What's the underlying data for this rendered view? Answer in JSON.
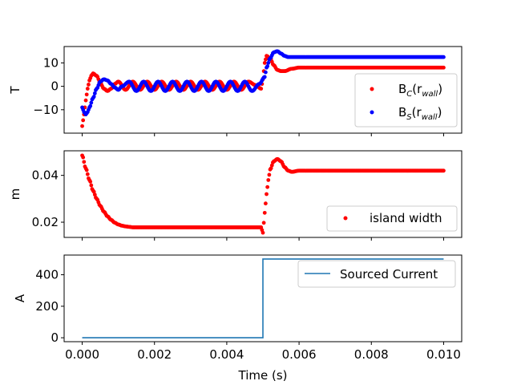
{
  "chart_data": [
    {
      "type": "scatter",
      "ylabel": "T",
      "xlim": [
        -0.0005,
        0.0105
      ],
      "ylim": [
        -20,
        17
      ],
      "yticks": [
        -10,
        0,
        10
      ],
      "ytick_labels": [
        "−10",
        "0",
        "10"
      ],
      "legend_position": "lower-right",
      "series": [
        {
          "name": "B",
          "name_sub": "C",
          "name_suffix": "(r",
          "name_arg": "wall",
          "color": "#ff0000",
          "x": [
            0.0,
            5e-05,
            0.0001,
            0.00015,
            0.0002,
            0.00025,
            0.0003,
            0.0004,
            0.0005,
            0.0006,
            0.0007,
            0.0008,
            0.0009,
            0.001,
            0.0012,
            0.0014,
            0.0016,
            0.0018,
            0.002,
            0.0022,
            0.0024,
            0.0026,
            0.0028,
            0.003,
            0.0032,
            0.0034,
            0.0036,
            0.0038,
            0.004,
            0.0042,
            0.0044,
            0.0046,
            0.0048,
            0.00495,
            0.005,
            0.00505,
            0.0051,
            0.0052,
            0.0053,
            0.0054,
            0.0055,
            0.0056,
            0.0058,
            0.006,
            0.0065,
            0.007,
            0.0075,
            0.008,
            0.0085,
            0.009,
            0.0095,
            0.01
          ],
          "y": [
            -17,
            -12,
            -6,
            -1,
            2.5,
            4.5,
            5.5,
            4.5,
            1.5,
            -1,
            -2,
            -1,
            1,
            2,
            -1.5,
            2,
            -1.5,
            2,
            -1.5,
            2,
            -1.5,
            2,
            -1.5,
            2,
            -1.5,
            2,
            -1.5,
            2,
            -1.5,
            2,
            -1.5,
            2,
            0.5,
            -1,
            3,
            10,
            13,
            12,
            9,
            7,
            6.5,
            6.5,
            7.5,
            8,
            8,
            8,
            8,
            8,
            8,
            8,
            8,
            8
          ]
        },
        {
          "name": "B",
          "name_sub": "S",
          "name_suffix": "(r",
          "name_arg": "wall",
          "color": "#0000ff",
          "x": [
            0.0,
            5e-05,
            0.0001,
            0.00015,
            0.0002,
            0.0003,
            0.0004,
            0.0005,
            0.0006,
            0.0007,
            0.0008,
            0.0009,
            0.001,
            0.0011,
            0.0013,
            0.0015,
            0.0017,
            0.0019,
            0.0021,
            0.0023,
            0.0025,
            0.0027,
            0.0029,
            0.0031,
            0.0033,
            0.0035,
            0.0037,
            0.0039,
            0.0041,
            0.0043,
            0.0045,
            0.0047,
            0.0049,
            0.00505,
            0.0051,
            0.0052,
            0.0053,
            0.0054,
            0.0055,
            0.0056,
            0.0057,
            0.0058,
            0.006,
            0.0065,
            0.007,
            0.0075,
            0.008,
            0.0085,
            0.009,
            0.0095,
            0.01
          ],
          "y": [
            -9,
            -11,
            -12,
            -11,
            -9,
            -5,
            -1,
            2,
            3,
            2.5,
            1,
            -0.5,
            -1.5,
            0,
            2,
            -2,
            2,
            -2,
            2,
            -2,
            2,
            -2,
            2,
            -2,
            2,
            -2,
            2,
            -2,
            2,
            -2,
            2,
            -2,
            1,
            4,
            8,
            12,
            14.5,
            15,
            14,
            13,
            12.5,
            12.5,
            12.5,
            12.5,
            12.5,
            12.5,
            12.5,
            12.5,
            12.5,
            12.5,
            12.5
          ]
        }
      ]
    },
    {
      "type": "scatter",
      "ylabel": "m",
      "xlim": [
        -0.0005,
        0.0105
      ],
      "ylim": [
        0.0135,
        0.0505
      ],
      "yticks": [
        0.02,
        0.04
      ],
      "ytick_labels": [
        "0.02",
        "0.04"
      ],
      "legend_position": "lower-right",
      "series": [
        {
          "name": "island width",
          "color": "#ff0000",
          "x": [
            0.0,
            0.0001,
            0.0002,
            0.0003,
            0.0004,
            0.0005,
            0.0006,
            0.0007,
            0.0008,
            0.0009,
            0.001,
            0.0011,
            0.0012,
            0.0013,
            0.0014,
            0.0016,
            0.0018,
            0.002,
            0.0025,
            0.003,
            0.0035,
            0.004,
            0.0045,
            0.00495,
            0.005,
            0.00505,
            0.0051,
            0.00515,
            0.0052,
            0.0053,
            0.0054,
            0.0055,
            0.0056,
            0.0057,
            0.0058,
            0.006,
            0.0065,
            0.007,
            0.0075,
            0.008,
            0.0085,
            0.009,
            0.0095,
            0.01
          ],
          "y": [
            0.0485,
            0.043,
            0.038,
            0.0335,
            0.03,
            0.027,
            0.0245,
            0.0225,
            0.021,
            0.0198,
            0.019,
            0.0185,
            0.0182,
            0.018,
            0.0178,
            0.0178,
            0.0178,
            0.0178,
            0.0178,
            0.0178,
            0.0178,
            0.0178,
            0.0178,
            0.0178,
            0.0155,
            0.024,
            0.032,
            0.038,
            0.0425,
            0.046,
            0.047,
            0.046,
            0.0435,
            0.042,
            0.0415,
            0.042,
            0.042,
            0.042,
            0.042,
            0.042,
            0.042,
            0.042,
            0.042,
            0.042
          ]
        }
      ]
    },
    {
      "type": "line",
      "ylabel": "A",
      "xlabel": "Time (s)",
      "xlim": [
        -0.0005,
        0.0105
      ],
      "ylim": [
        -25,
        525
      ],
      "yticks": [
        0,
        200,
        400
      ],
      "ytick_labels": [
        "0",
        "200",
        "400"
      ],
      "xticks": [
        0.0,
        0.002,
        0.004,
        0.006,
        0.008,
        0.01
      ],
      "xtick_labels": [
        "0.000",
        "0.002",
        "0.004",
        "0.006",
        "0.008",
        "0.010"
      ],
      "legend_position": "top-right",
      "series": [
        {
          "name": "Sourced Current",
          "color": "#1f77b4",
          "x": [
            0.0,
            0.005,
            0.005,
            0.01
          ],
          "y": [
            0,
            0,
            500,
            500
          ]
        }
      ]
    }
  ]
}
